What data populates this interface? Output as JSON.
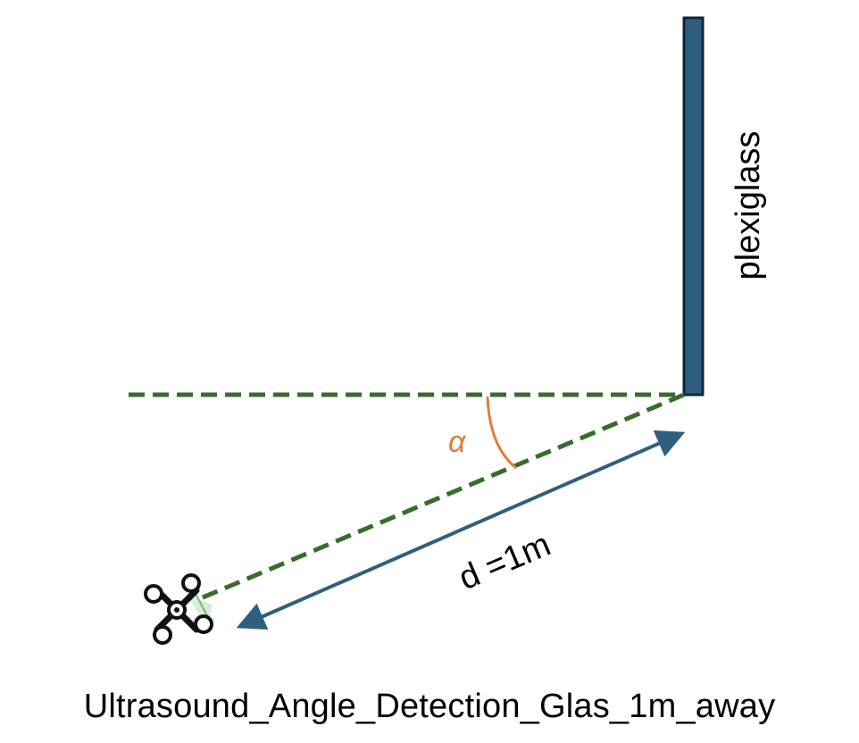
{
  "diagram": {
    "wall_label": "plexiglass",
    "angle_label": "α",
    "distance_label": "d =1m",
    "caption": "Ultrasound_Angle_Detection_Glas_1m_away",
    "icons": {
      "drone": "drone-icon",
      "wall": "plexiglass-wall"
    }
  },
  "colors": {
    "wall_fill": "#2e5f7f",
    "wall_stroke": "#10253a",
    "dashed_line": "#386b2e",
    "angle_arc": "#e07b3c",
    "distance_arrow": "#2e5f7f",
    "text": "#000000"
  }
}
